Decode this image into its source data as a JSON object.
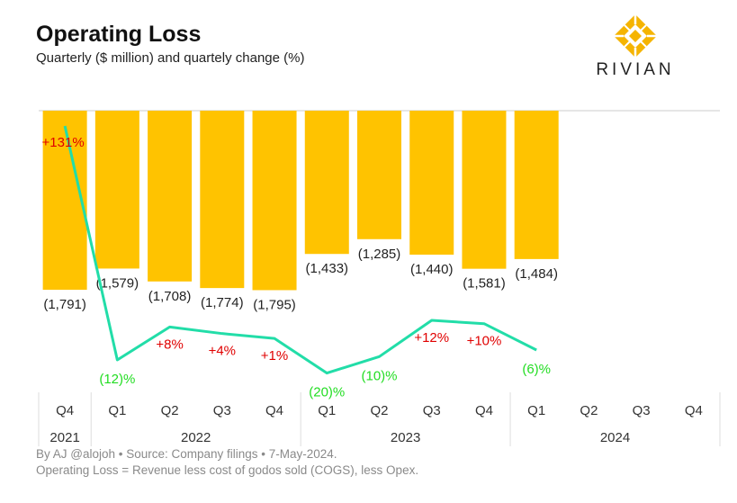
{
  "header": {
    "title": "Operating Loss",
    "subtitle": "Quarterly ($ million) and quartely change (%)"
  },
  "logo": {
    "text": "RIVIAN",
    "color": "#F5B400"
  },
  "footer": {
    "line1": "By AJ @alojoh • Source: Company filings • 7-May-2024.",
    "line2": "Operating Loss = Revenue less cost of godos sold (COGS), less Opex."
  },
  "colors": {
    "bar": "#FFC300",
    "line": "#22DDA8",
    "positive": "#E00000",
    "negative": "#22DD22"
  },
  "chart_data": {
    "type": "bar",
    "title": "Operating Loss",
    "subtitle": "Quarterly ($ million) and quartely change (%)",
    "categories": [
      "Q4",
      "Q1",
      "Q2",
      "Q3",
      "Q4",
      "Q1",
      "Q2",
      "Q3",
      "Q4",
      "Q1",
      "Q2",
      "Q3",
      "Q4"
    ],
    "years": [
      {
        "label": "2021",
        "span": 1
      },
      {
        "label": "2022",
        "span": 4
      },
      {
        "label": "2023",
        "span": 4
      },
      {
        "label": "2024",
        "span": 4
      }
    ],
    "series": [
      {
        "type": "bar",
        "values": [
          -1791,
          -1579,
          -1708,
          -1774,
          -1795,
          -1433,
          -1285,
          -1440,
          -1581,
          -1484,
          null,
          null,
          null
        ],
        "labels": [
          "(1,791)",
          "(1,579)",
          "(1,708)",
          "(1,774)",
          "(1,795)",
          "(1,433)",
          "(1,285)",
          "(1,440)",
          "(1,581)",
          "(1,484)",
          "",
          "",
          ""
        ]
      },
      {
        "type": "line",
        "values": [
          131,
          -12,
          8,
          4,
          1,
          -20,
          -10,
          12,
          10,
          -6,
          null,
          null,
          null
        ],
        "labels": [
          "+131%",
          "(12)%",
          "+8%",
          "+4%",
          "+1%",
          "(20)%",
          "(10)%",
          "+12%",
          "+10%",
          "(6)%",
          "",
          "",
          ""
        ]
      }
    ],
    "ylim": [
      -1900,
      0
    ]
  }
}
